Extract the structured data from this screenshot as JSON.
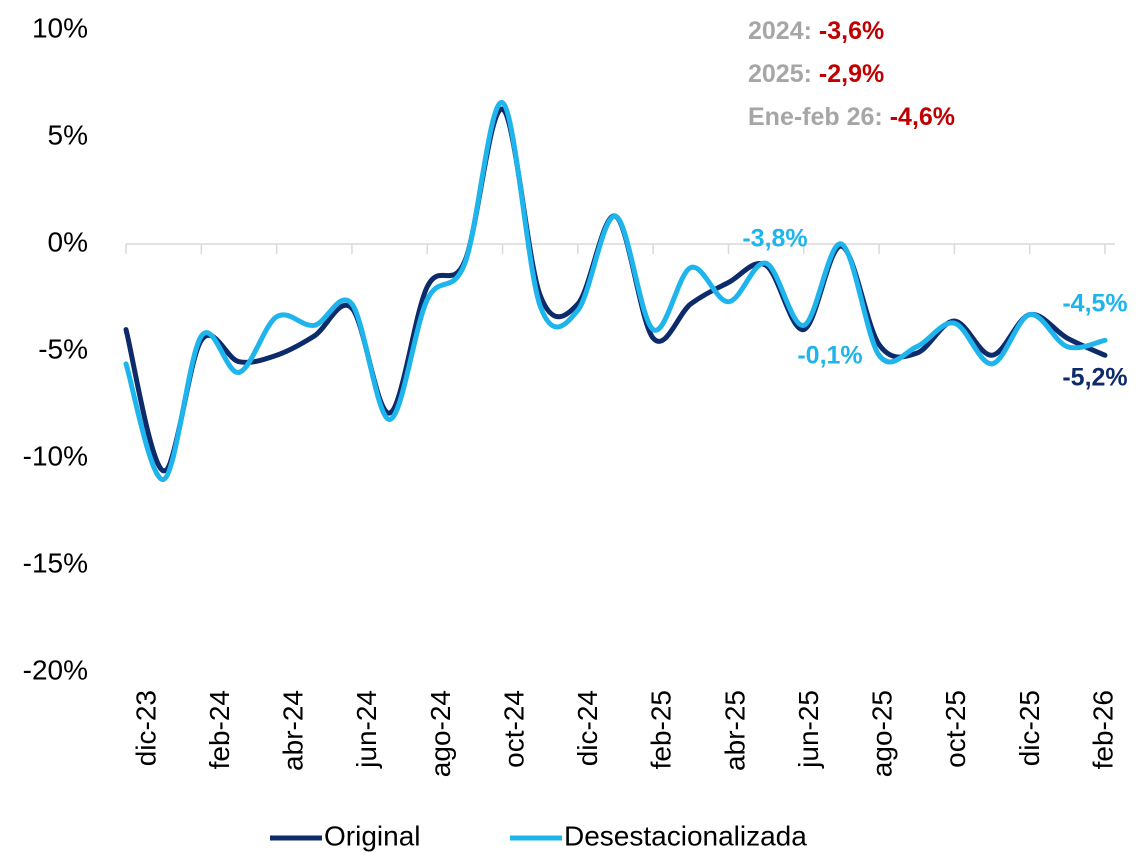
{
  "chart_data": {
    "type": "line",
    "categories": [
      "dic-23",
      null,
      "feb-24",
      null,
      "abr-24",
      null,
      "jun-24",
      null,
      "ago-24",
      null,
      "oct-24",
      null,
      "dic-24",
      null,
      "feb-25",
      null,
      "abr-25",
      null,
      "jun-25",
      null,
      "ago-25",
      null,
      "oct-25",
      null,
      "dic-25",
      null,
      "feb-26"
    ],
    "series": [
      {
        "name": "Original",
        "color": "#0d2a6b",
        "values": [
          -4.0,
          -10.6,
          -4.5,
          -5.5,
          -5.2,
          -4.3,
          -3.0,
          -7.9,
          -2.0,
          -0.8,
          6.3,
          -2.4,
          -2.8,
          1.3,
          -4.4,
          -2.8,
          -1.8,
          -1.0,
          -4.0,
          -0.1,
          -4.7,
          -5.1,
          -3.6,
          -5.2,
          -3.3,
          -4.4,
          -5.2
        ]
      },
      {
        "name": "Desestacionalizada",
        "color": "#1eb4ec",
        "values": [
          -5.6,
          -11.0,
          -4.3,
          -6.0,
          -3.4,
          -3.8,
          -2.8,
          -8.2,
          -2.6,
          -0.9,
          6.6,
          -2.9,
          -3.1,
          1.3,
          -4.0,
          -1.1,
          -2.7,
          -0.9,
          -3.8,
          0.0,
          -5.2,
          -4.8,
          -3.7,
          -5.6,
          -3.3,
          -4.8,
          -4.5
        ]
      }
    ],
    "ylim": [
      -20,
      10
    ],
    "yticks": [
      {
        "value": -20,
        "label": "-20%"
      },
      {
        "value": -15,
        "label": "-15%"
      },
      {
        "value": -10,
        "label": "-10%"
      },
      {
        "value": -5,
        "label": "-5%"
      },
      {
        "value": 0,
        "label": "0%"
      },
      {
        "value": 5,
        "label": "5%"
      },
      {
        "value": 10,
        "label": "10%"
      }
    ],
    "annotations": [
      {
        "text": "-3,8%",
        "color": "#1eb4ec"
      },
      {
        "text": "-0,1%",
        "color": "#1eb4ec"
      },
      {
        "text": "-4,5%",
        "color": "#1eb4ec"
      },
      {
        "text": "-5,2%",
        "color": "#0d2a6b"
      }
    ],
    "notes": [
      {
        "label": "2024:",
        "value": "-3,6%"
      },
      {
        "label": "2025:",
        "value": "-2,9%"
      },
      {
        "label": "Ene-feb 26:",
        "value": "-4,6%"
      }
    ],
    "note_label_color": "#a6a6a6",
    "note_value_color": "#c00000"
  }
}
